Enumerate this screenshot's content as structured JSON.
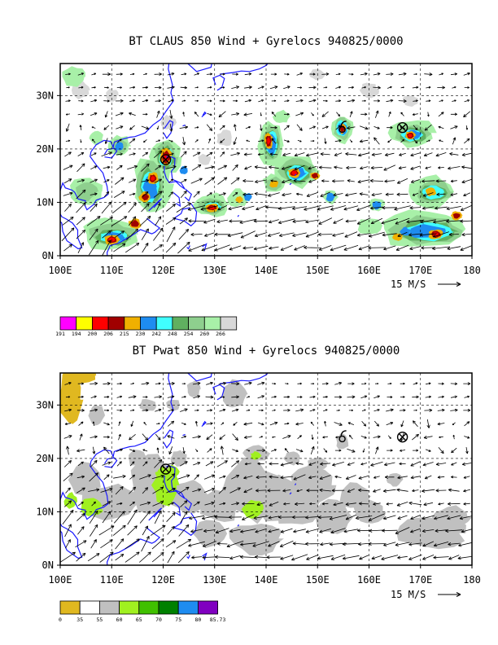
{
  "chart_data": [
    {
      "type": "heatmap",
      "title": "BT CLAUS 850 Wind + Gyrelocs 940825/0000",
      "x_ticks": [
        "100E",
        "110E",
        "120E",
        "130E",
        "140E",
        "150E",
        "160E",
        "170E",
        "180"
      ],
      "y_ticks": [
        "0N",
        "10N",
        "20N",
        "30N"
      ],
      "xlim": [
        100,
        180
      ],
      "ylim": [
        0,
        36
      ],
      "grid": true,
      "vector_reference": "15 M/S",
      "colorbar": {
        "labels": [
          "191",
          "194",
          "200",
          "206",
          "215",
          "230",
          "242",
          "248",
          "254",
          "260",
          "266"
        ],
        "colors": [
          "#ff00ff",
          "#ffff00",
          "#ff0000",
          "#a00000",
          "#f0b000",
          "#1e8cf0",
          "#40ffff",
          "#60b060",
          "#8ecf8e",
          "#a8f0a8",
          "#d8d8d8"
        ]
      },
      "gyre_locations": [
        [
          120.5,
          18.0
        ],
        [
          166.5,
          24.0
        ]
      ],
      "typhoon_symbols": [
        [
          154.8,
          23.8
        ]
      ],
      "regions": [
        {
          "center": [
            120.5,
            18.5
          ],
          "level": "206"
        },
        {
          "center": [
            118.0,
            14.5
          ],
          "level": "206"
        },
        {
          "center": [
            116.5,
            11.0
          ],
          "level": "206"
        },
        {
          "center": [
            110.0,
            3.0
          ],
          "level": "206"
        },
        {
          "center": [
            114.5,
            6.0
          ],
          "level": "206"
        },
        {
          "center": [
            129.5,
            9.0
          ],
          "level": "206"
        },
        {
          "center": [
            134.8,
            10.5
          ],
          "level": "215"
        },
        {
          "center": [
            140.5,
            21.5
          ],
          "level": "206"
        },
        {
          "center": [
            145.5,
            15.5
          ],
          "level": "206"
        },
        {
          "center": [
            149.5,
            15.0
          ],
          "level": "206"
        },
        {
          "center": [
            141.5,
            13.5
          ],
          "level": "215"
        },
        {
          "center": [
            154.8,
            23.8
          ],
          "level": "206"
        },
        {
          "center": [
            168.0,
            22.5
          ],
          "level": "206"
        },
        {
          "center": [
            172.0,
            12.0
          ],
          "level": "215"
        },
        {
          "center": [
            173.0,
            4.0
          ],
          "level": "206"
        },
        {
          "center": [
            177.0,
            7.5
          ],
          "level": "206"
        },
        {
          "center": [
            165.5,
            3.5
          ],
          "level": "215"
        },
        {
          "center": [
            152.5,
            11.0
          ],
          "level": "230"
        },
        {
          "center": [
            161.5,
            9.5
          ],
          "level": "230"
        },
        {
          "center": [
            167.0,
            4.5
          ],
          "level": "230"
        },
        {
          "center": [
            111.5,
            20.5
          ],
          "level": "230"
        }
      ]
    },
    {
      "type": "heatmap",
      "title": "BT Pwat 850 Wind + Gyrelocs 940825/0000",
      "x_ticks": [
        "100E",
        "110E",
        "120E",
        "130E",
        "140E",
        "150E",
        "160E",
        "170E",
        "180"
      ],
      "y_ticks": [
        "0N",
        "10N",
        "20N",
        "30N"
      ],
      "xlim": [
        100,
        180
      ],
      "ylim": [
        0,
        36
      ],
      "grid": true,
      "vector_reference": "15 M/S",
      "colorbar": {
        "labels": [
          "0",
          "35",
          "55",
          "60",
          "65",
          "70",
          "75",
          "80",
          "85.73"
        ],
        "colors": [
          "#e0b820",
          "#ffffff",
          "#c0c0c0",
          "#a0f020",
          "#40c000",
          "#008000",
          "#1e8cf0",
          "#8000c0"
        ]
      },
      "gyre_locations": [
        [
          120.5,
          18.0
        ],
        [
          166.5,
          24.0
        ]
      ],
      "typhoon_symbols": [
        [
          154.8,
          23.8
        ]
      ],
      "regions": [
        {
          "center": [
            102.0,
            31.0
          ],
          "level": "0-35"
        },
        {
          "center": [
            140.0,
            12.0
          ],
          "level": "55-60"
        },
        {
          "center": [
            160.0,
            12.0
          ],
          "level": "55-60"
        },
        {
          "center": [
            175.0,
            6.0
          ],
          "level": "55-60"
        },
        {
          "center": [
            120.5,
            14.0
          ],
          "level": "55-60"
        },
        {
          "center": [
            120.0,
            14.5
          ],
          "level": "60-65"
        },
        {
          "center": [
            106.0,
            10.0
          ],
          "level": "60-65"
        },
        {
          "center": [
            137.5,
            10.5
          ],
          "level": "60-65"
        },
        {
          "center": [
            137.5,
            20.5
          ],
          "level": "60-65"
        }
      ]
    }
  ]
}
